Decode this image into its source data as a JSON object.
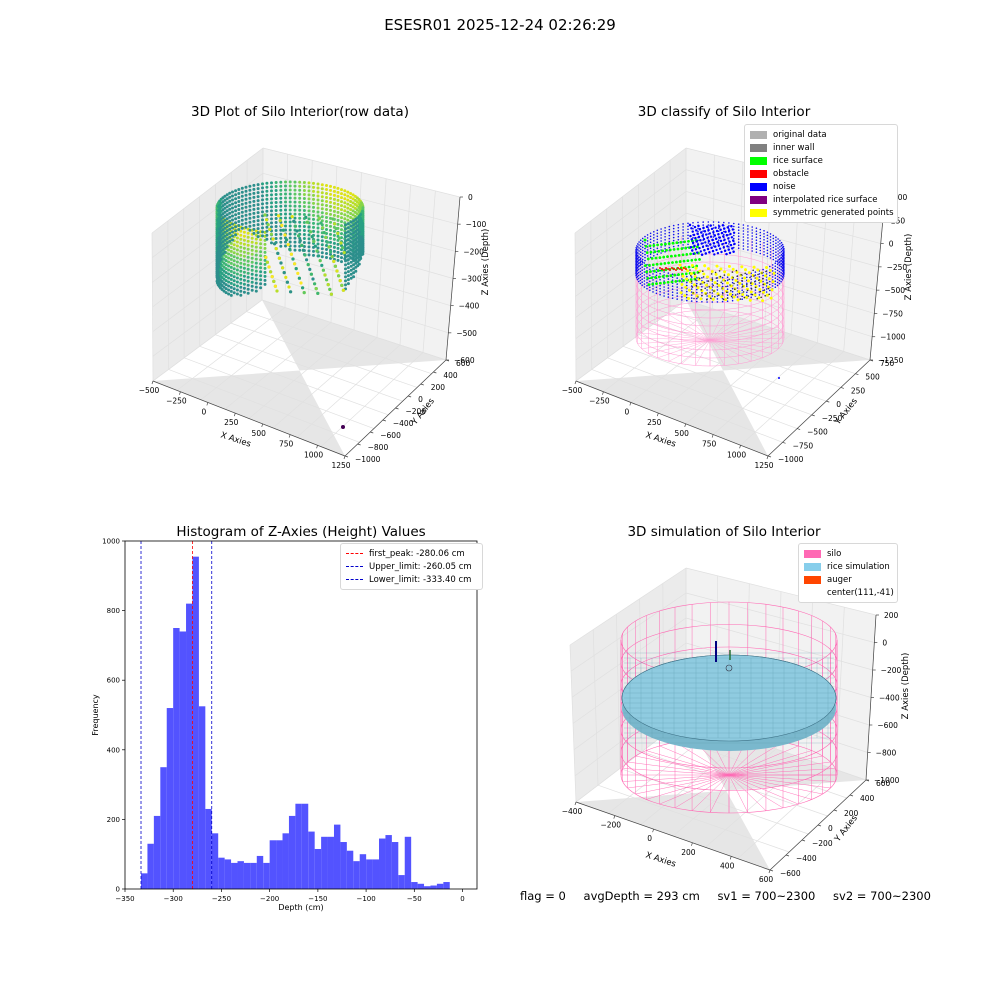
{
  "figure": {
    "suptitle": "ESESR01 2025-12-24 02:26:29",
    "footer": {
      "flag": "flag = 0",
      "avg": "avgDepth = 293 cm",
      "sv1": "sv1 = 700~2300",
      "sv2": "sv2 = 700~2300"
    }
  },
  "plot1": {
    "title": "3D Plot of Silo Interior(row data)",
    "xlabel": "X Axies",
    "ylabel": "Y Axies",
    "zlabel": "Z Axies (Depth)",
    "xticks": [
      "−500",
      "−250",
      "0",
      "250",
      "500",
      "750",
      "1000",
      "1250"
    ],
    "yticks": [
      "−1000",
      "−800",
      "−600",
      "−400",
      "−200",
      "0",
      "200",
      "400",
      "600"
    ],
    "zticks": [
      "0",
      "−100",
      "−200",
      "−300",
      "−400",
      "−500",
      "−600"
    ]
  },
  "plot2": {
    "title": "3D classify of Silo Interior",
    "xlabel": "X Axies",
    "ylabel": "Y Axies",
    "zlabel": "Z Axies (Depth)",
    "xticks": [
      "−500",
      "−250",
      "0",
      "250",
      "500",
      "750",
      "1000",
      "1250"
    ],
    "yticks": [
      "−1000",
      "−750",
      "−500",
      "−250",
      "0",
      "250",
      "500",
      "750"
    ],
    "zticks": [
      "500",
      "250",
      "0",
      "−250",
      "−500",
      "−750",
      "−1000",
      "−1250"
    ],
    "legend": [
      {
        "label": "original data",
        "color": "#b0b0b0"
      },
      {
        "label": "inner wall",
        "color": "#808080"
      },
      {
        "label": "rice surface",
        "color": "#00ff00"
      },
      {
        "label": "obstacle",
        "color": "#ff0000"
      },
      {
        "label": "noise",
        "color": "#0000ff"
      },
      {
        "label": "interpolated rice surface",
        "color": "#800080"
      },
      {
        "label": "symmetric generated points",
        "color": "#ffff00"
      }
    ]
  },
  "plot4": {
    "title": "3D simulation of Silo Interior",
    "xlabel": "X Axies",
    "ylabel": "Y Axies",
    "zlabel": "Z Axies (Depth)",
    "xticks": [
      "−400",
      "−200",
      "0",
      "200",
      "400",
      "600"
    ],
    "yticks": [
      "−600",
      "−400",
      "−200",
      "0",
      "200",
      "400",
      "600"
    ],
    "zticks": [
      "200",
      "0",
      "−200",
      "−400",
      "−600",
      "−800",
      "−1000"
    ],
    "legend": [
      {
        "label": "silo",
        "color": "#ff69b4"
      },
      {
        "label": "rice simulation",
        "color": "#87ceeb"
      },
      {
        "label": "auger",
        "color": "#ff4500"
      },
      {
        "label": "center(111,-41)",
        "color": "none"
      }
    ]
  },
  "chart_data": [
    {
      "type": "bar",
      "title": "Histogram of Z-Axies (Height) Values",
      "xlabel": "Depth (cm)",
      "ylabel": "Frequency",
      "xlim": [
        -350,
        15
      ],
      "ylim": [
        0,
        1000
      ],
      "xticks": [
        -350,
        -300,
        -250,
        -200,
        -150,
        -100,
        -50,
        0
      ],
      "yticks": [
        0,
        200,
        400,
        600,
        800,
        1000
      ],
      "bar_color": "#4a4aff",
      "bin_start": -333.4,
      "bin_width": 6.67,
      "values": [
        45,
        130,
        210,
        350,
        520,
        750,
        740,
        820,
        955,
        525,
        230,
        160,
        90,
        85,
        75,
        80,
        75,
        75,
        95,
        75,
        140,
        140,
        160,
        210,
        245,
        245,
        165,
        115,
        150,
        150,
        185,
        135,
        110,
        80,
        100,
        85,
        85,
        145,
        155,
        135,
        40,
        150,
        20,
        15,
        8,
        10,
        15,
        20
      ],
      "vlines": [
        {
          "label": "first_peak: -280.06 cm",
          "x": -280.06,
          "color": "#ff0000"
        },
        {
          "label": "Upper_limit: -260.05 cm",
          "x": -260.05,
          "color": "#0000cc"
        },
        {
          "label": "Lower_limit: -333.40 cm",
          "x": -333.4,
          "color": "#0000cc"
        }
      ],
      "legend_position": "top-right"
    }
  ]
}
